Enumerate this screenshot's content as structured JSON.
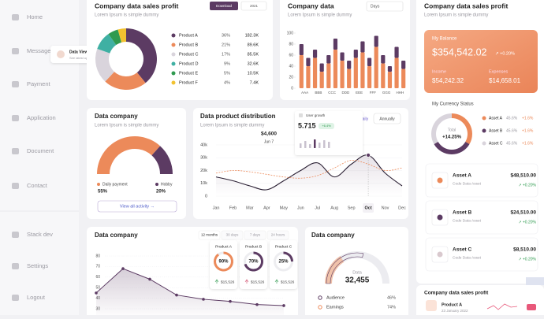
{
  "sidebar": {
    "menu": [
      "Home",
      "Message",
      "Payment",
      "Application",
      "Document",
      "Contact"
    ],
    "bottom_menu": [
      "Stack dev",
      "Settings",
      "Logout"
    ],
    "tooltip": {
      "title": "Data View",
      "subtitle": "See latest update"
    }
  },
  "sales_card": {
    "title": "Company data sales profit",
    "subtitle": "Lorem Ipsum is simple dummy",
    "download": "Download",
    "year": "2021",
    "chart_data": {
      "type": "donut",
      "categories": [
        "Product A",
        "Product B",
        "Product C",
        "Product D",
        "Product E",
        "Product F"
      ],
      "values": [
        36,
        21,
        17,
        9,
        5,
        4
      ],
      "value_labels": [
        "36%",
        "21%",
        "17%",
        "9%",
        "5%",
        "4%"
      ],
      "amounts": [
        "182.3K",
        "89.6K",
        "85.5K",
        "32.6K",
        "10.5K",
        "7.4K"
      ],
      "colors": [
        "#5c3b63",
        "#ec8a5a",
        "#d9d4dc",
        "#3fb0a3",
        "#2f9a4f",
        "#f2c230"
      ]
    }
  },
  "company_data_card": {
    "title": "Company data",
    "subtitle": "Lorem Ipsum is simple dummy",
    "period": "Days",
    "chart_data": {
      "type": "bar",
      "stacked": true,
      "categories": [
        "AAA",
        null,
        "BBB",
        null,
        "CCC",
        null,
        "DDD",
        null,
        "EEE",
        null,
        "FFF",
        null,
        "GGG",
        null,
        "HHH",
        null
      ],
      "series": [
        {
          "color": "#ec8a5a",
          "values": [
            60,
            40,
            55,
            30,
            45,
            70,
            50,
            35,
            55,
            65,
            40,
            75,
            45,
            30,
            55,
            35
          ]
        },
        {
          "color": "#5c3b63",
          "values": [
            20,
            15,
            15,
            15,
            15,
            20,
            15,
            15,
            15,
            20,
            15,
            20,
            15,
            10,
            20,
            15
          ]
        }
      ],
      "ylim": [
        0,
        100
      ],
      "yticks": [
        0,
        20,
        40,
        60,
        80,
        100
      ]
    }
  },
  "balance_card": {
    "title": "Company data sales profit",
    "subtitle": "Lorem Ipsum is simple dummy",
    "balance_label": "My Balance",
    "balance": "$354,542.02",
    "change": "↗ +0.20%",
    "income_label": "Income",
    "income": "$54,242.32",
    "expenses_label": "Expenses",
    "expenses": "$14,658.01",
    "status_title": "My Currency Status",
    "total_label": "Total",
    "total_change": "+14.25%",
    "currency_chart": {
      "type": "donut",
      "categories": [
        "Asset A",
        "Asset B",
        "Asset C"
      ],
      "values": [
        45.6,
        45.6,
        45.6
      ],
      "value_labels": [
        "45.6%",
        "45.6%",
        "45.6%"
      ],
      "changes": [
        "+1.6%",
        "+1.6%",
        "+1.6%"
      ],
      "colors": [
        "#ec8a5a",
        "#5c3b63",
        "#d9d4dc"
      ]
    },
    "assets": [
      {
        "name": "Asset A",
        "subtitle": "Code Data Asset",
        "amount": "$48,510.00",
        "change": "↗ +0.20%"
      },
      {
        "name": "Asset B",
        "subtitle": "Code Data Asset",
        "amount": "$24,510.00",
        "change": "↗ +0.20%"
      },
      {
        "name": "Asset C",
        "subtitle": "Code Data Asset",
        "amount": "$8,510.00",
        "change": "↗ +0.20%"
      }
    ]
  },
  "bottom_card": {
    "title": "Company data sales profit",
    "product": "Product A",
    "date": "23 January 2022"
  },
  "gauge_card": {
    "title": "Data company",
    "subtitle": "Lorem Ipsum is simple dummy",
    "button": "View all activity →",
    "chart_data": {
      "type": "half-donut",
      "categories": [
        "Daily payment",
        "Hobby"
      ],
      "values": [
        55,
        20
      ],
      "value_labels": [
        "55%",
        "20%"
      ],
      "colors": [
        "#ec8a5a",
        "#5c3b63"
      ]
    }
  },
  "distribution_card": {
    "title": "Data product distribution",
    "subtitle": "Lorem Ipsum is simple dummy",
    "tabs": [
      "Daily",
      "Annually"
    ],
    "tooltip": {
      "title": "User growth",
      "value": "5.715",
      "change": "+6.4%"
    },
    "chart_data": {
      "type": "line",
      "categories": [
        "Jan",
        "Feb",
        "Mar",
        "Apr",
        "May",
        "Jun",
        "Jul",
        "Aug",
        "Sep",
        "Oct",
        "Nov",
        "Dec"
      ],
      "series": [
        {
          "color": "#2a1f33",
          "values": [
            15000,
            12000,
            8000,
            5000,
            12000,
            20000,
            26000,
            15000,
            25000,
            32000,
            18000,
            8000
          ]
        },
        {
          "color": "#ec8a5a",
          "dashed": true,
          "values": [
            18000,
            20000,
            19000,
            17000,
            15000,
            14000,
            16000,
            22000,
            28000,
            25000,
            20000,
            22000
          ]
        }
      ],
      "ylim": [
        0,
        40000
      ],
      "yticks": [
        0,
        {
          "value": 10000,
          "label": "10k"
        },
        {
          "value": 20000,
          "label": "20k"
        },
        {
          "value": 30000,
          "label": "30k"
        },
        {
          "value": 40000,
          "label": "40k"
        }
      ],
      "annotation": {
        "text": "$4,600",
        "date": "Jun 7"
      },
      "highlight": "Oct"
    }
  },
  "area_card": {
    "title": "Data company",
    "tabs": [
      "12 months",
      "30 days",
      "7 days",
      "24 hours"
    ],
    "chart_data": {
      "type": "area",
      "categories": [
        null,
        null,
        null,
        null,
        null,
        null,
        null,
        null
      ],
      "values": [
        45,
        68,
        58,
        43,
        39,
        37,
        34,
        33
      ],
      "color": "#5c3b63",
      "ylim": [
        30,
        80
      ],
      "yticks": [
        30,
        40,
        50,
        60,
        70,
        80
      ]
    },
    "products": [
      {
        "name": "Product A",
        "percent": 90,
        "percent_label": "90%",
        "amount": "$15,526",
        "color": "#ec8a5a"
      },
      {
        "name": "Product B",
        "percent": 70,
        "percent_label": "70%",
        "amount": "$15,526",
        "color": "#5c3b63"
      },
      {
        "name": "Product C",
        "percent": 25,
        "percent_label": "25%",
        "amount": "$15,526",
        "color": "#5c3b63"
      }
    ]
  },
  "data_card": {
    "title": "Data company",
    "chart_label": "Data",
    "total": "32,455",
    "legend": [
      {
        "name": "Audience",
        "value": "46%"
      },
      {
        "name": "Earnings",
        "value": "74%"
      }
    ]
  }
}
